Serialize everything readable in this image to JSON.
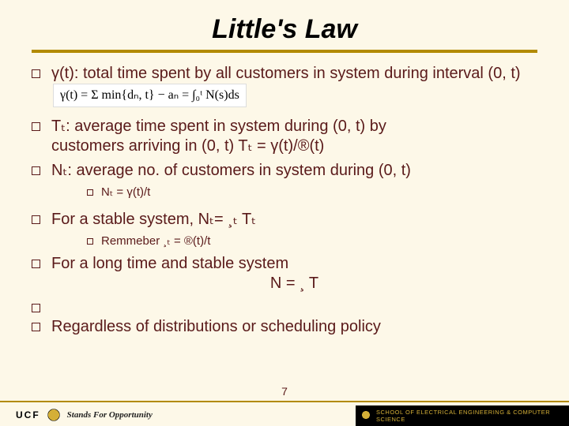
{
  "title": "Little's Law",
  "bullets": {
    "b1": "γ(t): total time spent by all customers in system during interval (0, t)",
    "formula": "γ(t) = Σ min{dₙ, t} − aₙ = ∫₀ᵗ N(s)ds",
    "b2_line1": "Tₜ: average time spent in system during (0, t) by",
    "b2_line2": "customers arriving in (0, t)   Tₜ = γ(t)/®(t)",
    "b3": "Nₜ: average no. of customers in system during (0, t)",
    "sub1": "Nₜ = γ(t)/t",
    "b4": "For a stable system, Nₜ= ¸ₜ Tₜ",
    "sub2": "Remmeber ¸ₜ = ®(t)/t",
    "b5": "For a long time and stable system",
    "b5_center": "N = ¸ T",
    "b6_blank": "",
    "b7": "Regardless of distributions or scheduling policy"
  },
  "page_number": "7",
  "footer": {
    "ucf": "UCF",
    "tagline": "Stands For Opportunity",
    "school": "SCHOOL OF ELECTRICAL ENGINEERING & COMPUTER SCIENCE"
  },
  "colors": {
    "background": "#fdf8e8",
    "text": "#5a1a1a",
    "accent": "#b28a00",
    "gold": "#d4af37"
  }
}
